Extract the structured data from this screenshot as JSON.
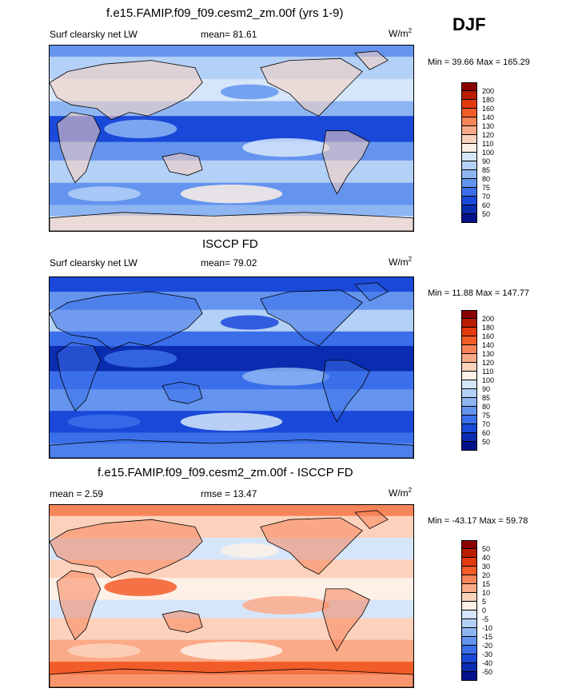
{
  "season": "DJF",
  "panels": [
    {
      "id": "model",
      "title": "f.e15.FAMIP.f09_f09.cesm2_zm.00f (yrs 1-9)",
      "left_label": "Surf clearsky net LW",
      "center_label": "mean=  81.61",
      "units_base": "W/m",
      "units_sup": "2",
      "minmax": "Min =  39.66 Max = 165.29",
      "colorbar_levels": [
        "200",
        "180",
        "160",
        "140",
        "130",
        "120",
        "110",
        "100",
        "90",
        "85",
        "80",
        "75",
        "70",
        "60",
        "50"
      ],
      "colors": [
        "#8b0000",
        "#b81d00",
        "#e33a0e",
        "#f25c28",
        "#f78459",
        "#fbaa88",
        "#fdd2bc",
        "#fdf0e6",
        "#d6e6fa",
        "#b3d0f7",
        "#8db5f2",
        "#6494ee",
        "#3b6fe9",
        "#1a49d9",
        "#0a2cb0",
        "#03128a"
      ],
      "map_style": "model"
    },
    {
      "id": "obs",
      "title": "ISCCP FD",
      "left_label": "Surf clearsky net LW",
      "center_label": "mean=  79.02",
      "units_base": "W/m",
      "units_sup": "2",
      "minmax": "Min =  11.88 Max = 147.77",
      "colorbar_levels": [
        "200",
        "180",
        "160",
        "140",
        "130",
        "120",
        "110",
        "100",
        "90",
        "85",
        "80",
        "75",
        "70",
        "60",
        "50"
      ],
      "colors": [
        "#8b0000",
        "#b81d00",
        "#e33a0e",
        "#f25c28",
        "#f78459",
        "#fbaa88",
        "#fdd2bc",
        "#fdf0e6",
        "#d6e6fa",
        "#b3d0f7",
        "#8db5f2",
        "#6494ee",
        "#3b6fe9",
        "#1a49d9",
        "#0a2cb0",
        "#03128a"
      ],
      "map_style": "obs"
    },
    {
      "id": "diff",
      "title": "f.e15.FAMIP.f09_f09.cesm2_zm.00f - ISCCP FD",
      "left_label": "mean =   2.59",
      "center_label": "rmse =  13.47",
      "units_base": "W/m",
      "units_sup": "2",
      "minmax": "Min = -43.17 Max =  59.78",
      "colorbar_levels": [
        "50",
        "40",
        "30",
        "20",
        "15",
        "10",
        "5",
        "0",
        "-5",
        "-10",
        "-15",
        "-20",
        "-30",
        "-40",
        "-50"
      ],
      "colors": [
        "#8b0000",
        "#b81d00",
        "#e33a0e",
        "#f25c28",
        "#f78459",
        "#fbaa88",
        "#fdd2bc",
        "#fdf0e6",
        "#d6e6fa",
        "#b3d0f7",
        "#8db5f2",
        "#6494ee",
        "#3b6fe9",
        "#1a49d9",
        "#0a2cb0",
        "#03128a"
      ],
      "map_style": "diff"
    }
  ]
}
